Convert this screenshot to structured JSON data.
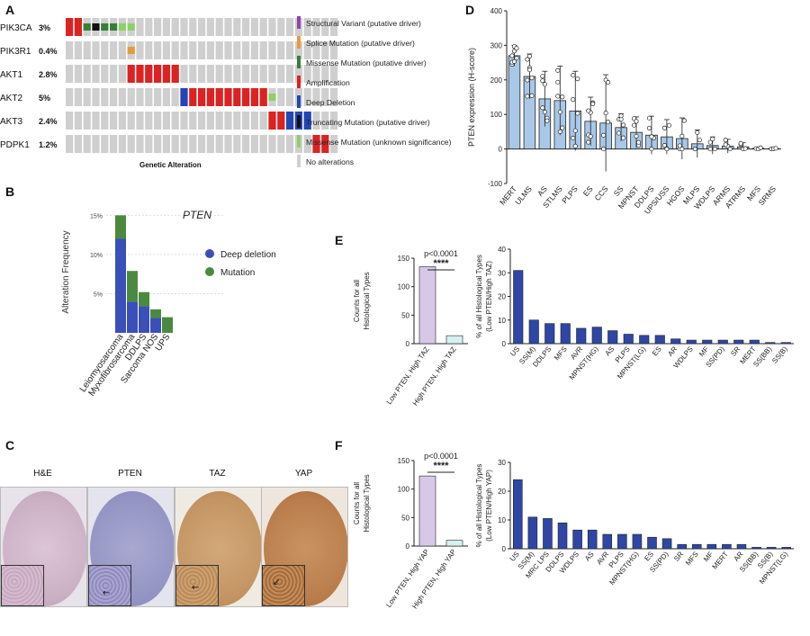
{
  "panel_letters": {
    "a": "A",
    "b": "B",
    "c": "C",
    "d": "D",
    "e": "E",
    "f": "F"
  },
  "oncoprint": {
    "genes": [
      {
        "name": "PIK3CA",
        "pct": "3%"
      },
      {
        "name": "PIK3R1",
        "pct": "0.4%"
      },
      {
        "name": "AKT1",
        "pct": "2.8%"
      },
      {
        "name": "AKT2",
        "pct": "5%"
      },
      {
        "name": "AKT3",
        "pct": "2.4%"
      },
      {
        "name": "PDPK1",
        "pct": "1.2%"
      }
    ],
    "footer": "Genetic Alteration",
    "legend": [
      {
        "label": "Structural Variant (putative driver)",
        "color": "#8e44ad"
      },
      {
        "label": "Splice Mutation (putative driver)",
        "color": "#e89a3c"
      },
      {
        "label": "Missense Mutation (putative driver)",
        "color": "#3a7d3a"
      },
      {
        "label": "Amplification",
        "color": "#dd2222"
      },
      {
        "label": "Deep Deletion",
        "color": "#2345b5"
      },
      {
        "label": "Truncating Mutation (putative driver)",
        "color": "#111111"
      },
      {
        "label": "Missense Mutation (unknown significance)",
        "color": "#8fcf6a"
      },
      {
        "label": "No alterations",
        "color": "#cfcfcf"
      }
    ]
  },
  "colors": {
    "deep_deletion": "#3a4fb8",
    "mutation": "#4b8a3e",
    "bar_blue": "#a9c8e8",
    "bar_navy": "#2f46a6",
    "purple": "#d8c8e8",
    "cyan": "#d7f0f0"
  },
  "ihc": {
    "labels": [
      "H&E",
      "PTEN",
      "TAZ",
      "YAP"
    ]
  },
  "chart_data": [
    {
      "panel": "B",
      "type": "bar",
      "stacked": true,
      "title": "PTEN",
      "ylabel": "Alteration Frequency",
      "yticks": [
        "5%",
        "10%",
        "15%"
      ],
      "ylim": [
        0,
        15.5
      ],
      "categories": [
        "Leiomyosarcoma",
        "Myxofibrosarcoma",
        "DDLPS",
        "Sarcoma NOS",
        "UPS"
      ],
      "series": [
        {
          "name": "Deep deletion",
          "values": [
            12,
            4,
            3.4,
            1.9,
            0
          ]
        },
        {
          "name": "Mutation",
          "values": [
            3,
            3.9,
            1.8,
            1.1,
            2
          ]
        }
      ]
    },
    {
      "panel": "D",
      "type": "bar",
      "with_points": true,
      "ylabel": "PTEN expression (H-score)",
      "ylim": [
        -100,
        400
      ],
      "yticks": [
        -100,
        0,
        100,
        200,
        300,
        400
      ],
      "categories": [
        "MERT",
        "ULMS",
        "AS",
        "STLMS",
        "PLPS",
        "ES",
        "CCS",
        "SS",
        "MPNST",
        "DDLPS",
        "UPS/USS",
        "HGOS",
        "MLPS",
        "WDLPS",
        "ARMS",
        "ATRMS",
        "MFS",
        "SRMS"
      ],
      "values": [
        270,
        210,
        145,
        140,
        110,
        80,
        75,
        62,
        48,
        40,
        35,
        30,
        15,
        10,
        8,
        6,
        2,
        1
      ],
      "errors": [
        30,
        65,
        80,
        100,
        115,
        70,
        140,
        40,
        45,
        55,
        50,
        60,
        40,
        25,
        20,
        12,
        3,
        1
      ]
    },
    {
      "panel": "E-left",
      "type": "bar",
      "ylabel": "Counts for all Histological Types",
      "ylim": [
        0,
        150
      ],
      "yticks": [
        0,
        50,
        100,
        150
      ],
      "categories": [
        "Low PTEN, High TAZ",
        "High PTEN, High TAZ"
      ],
      "values": [
        135,
        14
      ],
      "annotation": "p<0.0001",
      "stars": "****"
    },
    {
      "panel": "E-right",
      "type": "bar",
      "ylabel": "% of all Histological Types (Low PTEN/High TAZ)",
      "ylim": [
        0,
        40
      ],
      "yticks": [
        0,
        10,
        20,
        30,
        40
      ],
      "categories": [
        "US",
        "SS(M)",
        "DDLPS",
        "MFS",
        "AVR",
        "MPNST(HG)",
        "AS",
        "PLPS",
        "MPNST(LG)",
        "ES",
        "AR",
        "WDLPS",
        "MF",
        "SS(PD)",
        "SR",
        "MERT",
        "SS(BB)",
        "SS(B)"
      ],
      "values": [
        31,
        10,
        8.5,
        8.5,
        6.5,
        7,
        5.5,
        4,
        3.5,
        3.5,
        2,
        1.5,
        1.5,
        1.5,
        1.5,
        1.5,
        0.5,
        0.5
      ]
    },
    {
      "panel": "F-left",
      "type": "bar",
      "ylabel": "Counts for all Histological Types",
      "ylim": [
        0,
        150
      ],
      "yticks": [
        0,
        50,
        100,
        150
      ],
      "categories": [
        "Low PTEN, High YAP",
        "High PTEN, High YAP"
      ],
      "values": [
        123,
        10
      ],
      "annotation": "p<0.0001",
      "stars": "****"
    },
    {
      "panel": "F-right",
      "type": "bar",
      "ylabel": "% of all Histological Types (Low PTEN/High YAP)",
      "ylim": [
        0,
        30
      ],
      "yticks": [
        0,
        10,
        20,
        30
      ],
      "categories": [
        "US",
        "SS(M)",
        "MRC LPS",
        "DDLPS",
        "WDLPS",
        "AS",
        "AVR",
        "PLPS",
        "MPNST(HG)",
        "ES",
        "SS(PD)",
        "SR",
        "MFS",
        "MF",
        "MERT",
        "AR",
        "SS(BB)",
        "SS(B)",
        "MPNST(LG)"
      ],
      "values": [
        24,
        11,
        10.5,
        9,
        6.5,
        6.5,
        5,
        5,
        5,
        4,
        3.5,
        1.5,
        1.5,
        1.5,
        1.5,
        1.5,
        0.5,
        0.5,
        0.5
      ]
    }
  ]
}
